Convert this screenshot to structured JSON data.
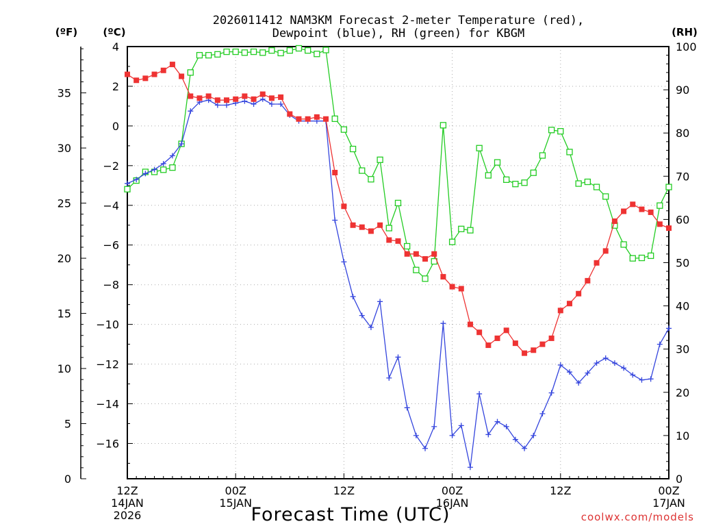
{
  "chart_data": {
    "type": "line",
    "title_line1": "2026011412 NAM3KM Forecast 2-meter Temperature (red),",
    "title_line2": "Dewpoint (blue), RH (green) for KBGM",
    "xlabel": "Forecast Time (UTC)",
    "watermark": "coolwx.com/models",
    "left_axis_f_label": "(ºF)",
    "left_axis_c_label": "(ºC)",
    "right_axis_label": "(RH)",
    "xlim": [
      0,
      60
    ],
    "ylim_celsius": [
      -17.778,
      4
    ],
    "ylim_fahrenheit": [
      0,
      39.2
    ],
    "ylim_rh": [
      0,
      100
    ],
    "x_ticks": [
      {
        "x": 0,
        "l1": "12Z",
        "l2": "14JAN",
        "l3": "2026"
      },
      {
        "x": 12,
        "l1": "00Z",
        "l2": "15JAN",
        "l3": ""
      },
      {
        "x": 24,
        "l1": "12Z",
        "l2": "",
        "l3": ""
      },
      {
        "x": 36,
        "l1": "00Z",
        "l2": "16JAN",
        "l3": ""
      },
      {
        "x": 48,
        "l1": "12Z",
        "l2": "",
        "l3": ""
      },
      {
        "x": 60,
        "l1": "00Z",
        "l2": "17JAN",
        "l3": ""
      }
    ],
    "celsius_ticks": [
      4,
      2,
      0,
      -2,
      -4,
      -6,
      -8,
      -10,
      -12,
      -14,
      -16
    ],
    "fahrenheit_ticks": [
      0,
      5,
      10,
      15,
      20,
      25,
      30,
      35
    ],
    "rh_ticks": [
      0,
      10,
      20,
      30,
      40,
      50,
      60,
      70,
      80,
      90,
      100
    ],
    "colors": {
      "temperature": "#ee3333",
      "dewpoint": "#3344dd",
      "rh": "#22cc22",
      "grid": "#aaaaaa",
      "watermark": "#dd3333"
    },
    "series": [
      {
        "name": "Temperature",
        "unit": "C",
        "values": [
          2.6,
          2.3,
          2.4,
          2.6,
          2.8,
          3.1,
          2.5,
          1.5,
          1.4,
          1.5,
          1.3,
          1.3,
          1.35,
          1.5,
          1.35,
          1.6,
          1.4,
          1.45,
          0.6,
          0.35,
          0.35,
          0.45,
          0.35,
          -2.35,
          -4.05,
          -5.0,
          -5.1,
          -5.3,
          -5.0,
          -5.75,
          -5.8,
          -6.45,
          -6.45,
          -6.7,
          -6.45,
          -7.6,
          -8.1,
          -8.2,
          -10.0,
          -10.4,
          -11.05,
          -10.7,
          -10.3,
          -10.95,
          -11.45,
          -11.3,
          -11.0,
          -10.7,
          -9.3,
          -8.95,
          -8.45,
          -7.8,
          -6.9,
          -6.3,
          -4.8,
          -4.3,
          -3.95,
          -4.2,
          -4.35,
          -4.95,
          -5.15
        ],
        "marker": "filled-square"
      },
      {
        "name": "Dewpoint",
        "unit": "C",
        "values": [
          -2.9,
          -2.7,
          -2.4,
          -2.2,
          -1.9,
          -1.5,
          -0.9,
          0.75,
          1.2,
          1.3,
          1.05,
          1.05,
          1.15,
          1.25,
          1.1,
          1.35,
          1.1,
          1.1,
          0.55,
          0.25,
          0.25,
          0.25,
          0.25,
          -4.75,
          -6.85,
          -8.6,
          -9.55,
          -10.15,
          -8.85,
          -12.7,
          -11.65,
          -14.2,
          -15.6,
          -16.25,
          -15.15,
          -9.95,
          -15.6,
          -15.1,
          -17.2,
          -13.5,
          -15.55,
          -14.9,
          -15.15,
          -15.8,
          -16.25,
          -15.6,
          -14.5,
          -13.45,
          -12.05,
          -12.4,
          -12.95,
          -12.45,
          -11.95,
          -11.7,
          -11.95,
          -12.2,
          -12.55,
          -12.8,
          -12.75,
          -11.0,
          -10.2
        ],
        "marker": "plus"
      },
      {
        "name": "RH",
        "unit": "%",
        "values": [
          67,
          69,
          71,
          71,
          71.5,
          72,
          77.5,
          94,
          98,
          98,
          98.2,
          98.8,
          98.8,
          98.6,
          98.8,
          98.6,
          99.1,
          98.5,
          99.1,
          99.6,
          99.1,
          98.3,
          99.2,
          83.3,
          80.8,
          76.3,
          71.3,
          69.3,
          73.8,
          58,
          63.8,
          53.8,
          48.3,
          46.3,
          50.3,
          81.8,
          54.8,
          57.8,
          57.5,
          76.5,
          70.2,
          73.2,
          69.2,
          68.2,
          68.5,
          70.8,
          74.8,
          80.7,
          80.4,
          75.6,
          68.3,
          68.7,
          67.5,
          65.3,
          58.6,
          54.2,
          51,
          51.1,
          51.6,
          63.2,
          67.5
        ],
        "marker": "open-square"
      }
    ]
  }
}
